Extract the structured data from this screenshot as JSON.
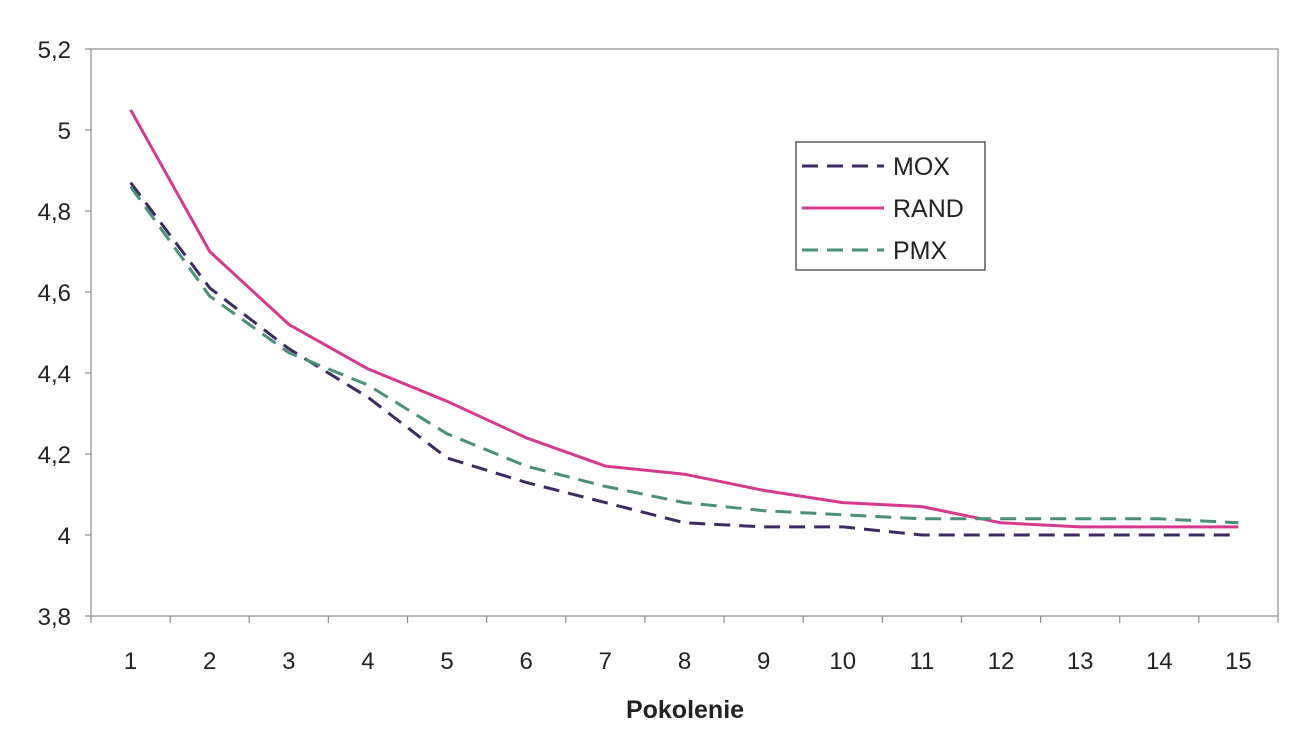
{
  "chart_data": {
    "type": "line",
    "title": "",
    "xlabel": "Pokolenie",
    "ylabel": "",
    "categories": [
      "1",
      "2",
      "3",
      "4",
      "5",
      "6",
      "7",
      "8",
      "9",
      "10",
      "11",
      "12",
      "13",
      "14",
      "15"
    ],
    "ylim": [
      3.8,
      5.2
    ],
    "y_ticks": [
      {
        "value": 3.8,
        "label": "3,8"
      },
      {
        "value": 4.0,
        "label": "4"
      },
      {
        "value": 4.2,
        "label": "4,2"
      },
      {
        "value": 4.4,
        "label": "4,4"
      },
      {
        "value": 4.6,
        "label": "4,6"
      },
      {
        "value": 4.8,
        "label": "4,8"
      },
      {
        "value": 5.0,
        "label": "5"
      },
      {
        "value": 5.2,
        "label": "5,2"
      }
    ],
    "grid": false,
    "legend_position": "top-right",
    "series": [
      {
        "name": "MOX",
        "color": "#3d2a63",
        "dash": "dashed",
        "values": [
          4.87,
          4.61,
          4.46,
          4.34,
          4.19,
          4.13,
          4.08,
          4.03,
          4.02,
          4.02,
          4.0,
          4.0,
          4.0,
          4.0,
          4.0
        ]
      },
      {
        "name": "RAND",
        "color": "#d63a8e",
        "dash": "solid",
        "values": [
          5.05,
          4.7,
          4.52,
          4.41,
          4.33,
          4.24,
          4.17,
          4.15,
          4.11,
          4.08,
          4.07,
          4.03,
          4.02,
          4.02,
          4.02
        ]
      },
      {
        "name": "PMX",
        "color": "#4a8f78",
        "dash": "dashed",
        "values": [
          4.86,
          4.59,
          4.45,
          4.37,
          4.25,
          4.17,
          4.12,
          4.08,
          4.06,
          4.05,
          4.04,
          4.04,
          4.04,
          4.04,
          4.03
        ]
      }
    ]
  }
}
